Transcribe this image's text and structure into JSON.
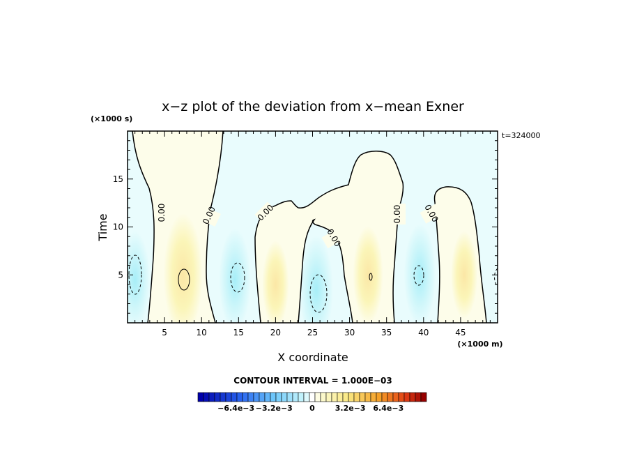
{
  "chart_data": {
    "type": "heatmap",
    "title": "x−z plot of the deviation from x−mean Exner",
    "xlabel": "X coordinate",
    "ylabel": "Time",
    "x_unit": "(×1000 m)",
    "y_unit": "(×1000 s)",
    "time_stamp": "t=324000",
    "xlim": [
      0,
      50
    ],
    "ylim": [
      0,
      20
    ],
    "x_ticks": [
      5,
      10,
      15,
      20,
      25,
      30,
      35,
      40,
      45
    ],
    "y_ticks": [
      5,
      10,
      15
    ],
    "contour_interval_text": "CONTOUR INTERVAL = 1.000E−03",
    "contour_labels": [
      "0.00",
      "0.00",
      "0.00",
      "0.00",
      "0.00",
      "0.00"
    ],
    "colorbar": {
      "tick_labels": [
        "−6.4e−3",
        "−3.2e−3",
        "0",
        "3.2e−3",
        "6.4e−3"
      ],
      "tick_values": [
        -0.0064,
        -0.0032,
        0,
        0.0032,
        0.0064
      ],
      "range": [
        -0.0096,
        0.0096
      ]
    },
    "colors": {
      "background": "#e9fcfd",
      "positive_pale": "#fdfdea",
      "positive_mid": "#fbf5b8",
      "positive_strong": "#fbe7a6",
      "negative_mid": "#cdf6fa",
      "negative_strong": "#a7eef8"
    },
    "anomalies": [
      {
        "sign": "negative",
        "x": 1.0,
        "t": 4.5,
        "strength": 0.0012
      },
      {
        "sign": "positive",
        "x": 7.5,
        "t": 5.0,
        "strength": 0.0022
      },
      {
        "sign": "negative",
        "x": 14.5,
        "t": 4.5,
        "strength": 0.0014
      },
      {
        "sign": "positive",
        "x": 20.0,
        "t": 4.0,
        "strength": 0.0008
      },
      {
        "sign": "negative",
        "x": 25.5,
        "t": 3.5,
        "strength": 0.0016
      },
      {
        "sign": "positive",
        "x": 32.5,
        "t": 5.0,
        "strength": 0.0012
      },
      {
        "sign": "negative",
        "x": 39.5,
        "t": 5.0,
        "strength": 0.0014
      },
      {
        "sign": "positive",
        "x": 45.5,
        "t": 5.0,
        "strength": 0.0008
      }
    ]
  }
}
